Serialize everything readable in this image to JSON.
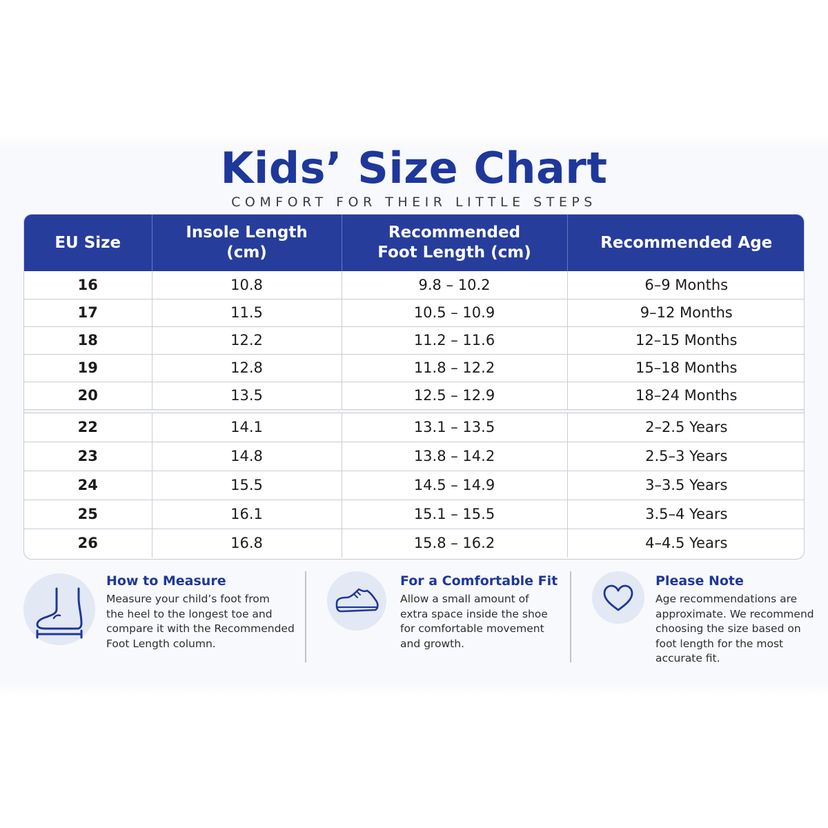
{
  "header": {
    "title": "Kids’ Size Chart",
    "subtitle": "COMFORT FOR THEIR LITTLE STEPS"
  },
  "table": {
    "columns": [
      "EU Size",
      "Insole Length\n(cm)",
      "Recommended\nFoot Length (cm)",
      "Recommended Age"
    ],
    "group1": [
      [
        "16",
        "10.8",
        "9.8 – 10.2",
        "6–9 Months"
      ],
      [
        "17",
        "11.5",
        "10.5 – 10.9",
        "9–12 Months"
      ],
      [
        "18",
        "12.2",
        "11.2 – 11.6",
        "12–15 Months"
      ],
      [
        "19",
        "12.8",
        "11.8 – 12.2",
        "15–18 Months"
      ],
      [
        "20",
        "13.5",
        "12.5 – 12.9",
        "18–24 Months"
      ]
    ],
    "group2": [
      [
        "22",
        "14.1",
        "13.1 – 13.5",
        "2–2.5 Years"
      ],
      [
        "23",
        "14.8",
        "13.8 – 14.2",
        "2.5–3 Years"
      ],
      [
        "24",
        "15.5",
        "14.5 – 14.9",
        "3–3.5 Years"
      ],
      [
        "25",
        "16.1",
        "15.1 – 15.5",
        "3.5–4 Years"
      ],
      [
        "26",
        "16.8",
        "15.8 – 16.2",
        "4–4.5 Years"
      ]
    ]
  },
  "tips": {
    "measure": {
      "icon": "foot-measure-icon",
      "heading": "How to Measure",
      "body": "Measure your child’s foot from\nthe heel to the longest toe and\ncompare it with the Recommended\nFoot Length column."
    },
    "fit": {
      "icon": "shoe-icon",
      "heading": "For a Comfortable Fit",
      "body": "Allow a small amount of\nextra space inside the shoe\nfor comfortable movement\nand growth."
    },
    "note": {
      "icon": "heart-icon",
      "heading": "Please Note",
      "body": "Age recommendations are\napproximate. We recommend\nchoosing the size based on\nfoot length for the most\naccurate fit."
    }
  },
  "colors": {
    "accent": "#263d9c",
    "heading_blue": "#1e379a",
    "icon_circle": "#e3e8f5"
  }
}
